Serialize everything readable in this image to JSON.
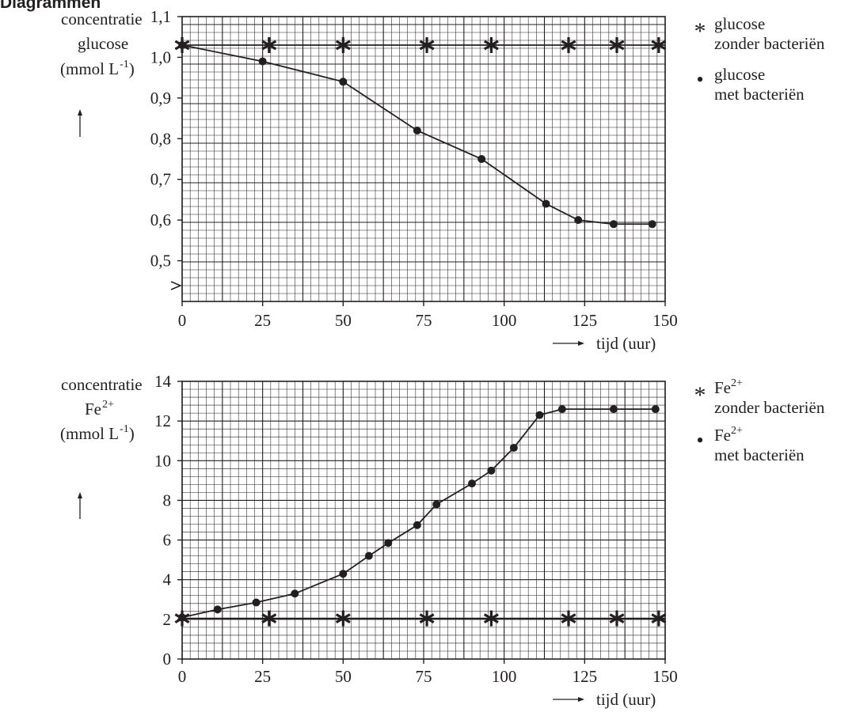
{
  "page": {
    "heading": "Diagrammen"
  },
  "colors": {
    "ink": "#231f20",
    "background": "#ffffff"
  },
  "chart_data": [
    {
      "type": "line",
      "ylabel_lines": [
        "concentratie",
        "glucose",
        "(mmol L",
        "-1",
        ")"
      ],
      "xlabel": "tijd (uur)",
      "y_axis_arrow": "↑",
      "x_axis_arrow": "⟶",
      "x_ticks": [
        "0",
        "25",
        "50",
        "75",
        "100",
        "125",
        "150"
      ],
      "y_ticks": [
        "0,5",
        "0,6",
        "0,7",
        "0,8",
        "0,9",
        "1,0",
        "1,1"
      ],
      "xlim": [
        0,
        150
      ],
      "ylim": [
        0.4,
        1.1
      ],
      "axis_break": true,
      "grid": true,
      "legend_position": "right",
      "series": [
        {
          "name_lines": [
            "glucose",
            "zonder bacteriën"
          ],
          "marker": "asterisk",
          "marker_glyph": "*",
          "x": [
            0,
            27,
            50,
            76,
            96,
            120,
            135,
            148
          ],
          "y": [
            1.03,
            1.03,
            1.03,
            1.03,
            1.03,
            1.03,
            1.03,
            1.03
          ]
        },
        {
          "name_lines": [
            "glucose",
            "met bacteriën"
          ],
          "marker": "dot",
          "marker_glyph": "•",
          "x": [
            0,
            25,
            50,
            73,
            93,
            113,
            123,
            134,
            146
          ],
          "y": [
            1.03,
            0.99,
            0.94,
            0.82,
            0.75,
            0.64,
            0.6,
            0.59,
            0.59
          ]
        }
      ]
    },
    {
      "type": "line",
      "ylabel_lines": [
        "concentratie",
        "Fe",
        "2+",
        "(mmol L",
        "-1",
        ")"
      ],
      "xlabel": "tijd (uur)",
      "y_axis_arrow": "↑",
      "x_axis_arrow": "⟶",
      "x_ticks": [
        "0",
        "25",
        "50",
        "75",
        "100",
        "125",
        "150"
      ],
      "y_ticks": [
        "0",
        "2",
        "4",
        "6",
        "8",
        "10",
        "12",
        "14"
      ],
      "xlim": [
        0,
        150
      ],
      "ylim": [
        0,
        14
      ],
      "grid": true,
      "legend_position": "right",
      "series": [
        {
          "name_lines": [
            "Fe",
            "2+",
            "zonder bacteriën"
          ],
          "marker": "asterisk",
          "marker_glyph": "*",
          "x": [
            0,
            27,
            50,
            76,
            96,
            120,
            135,
            148
          ],
          "y": [
            2.05,
            2.05,
            2.05,
            2.05,
            2.05,
            2.05,
            2.05,
            2.05
          ]
        },
        {
          "name_lines": [
            "Fe",
            "2+",
            "met bacteriën"
          ],
          "marker": "dot",
          "marker_glyph": "•",
          "x": [
            0,
            11,
            23,
            35,
            50,
            58,
            64,
            73,
            79,
            90,
            96,
            103,
            111,
            118,
            134,
            147
          ],
          "y": [
            2.1,
            2.5,
            2.85,
            3.3,
            4.3,
            5.2,
            5.85,
            6.75,
            7.8,
            8.85,
            9.5,
            10.65,
            12.3,
            12.6,
            12.6,
            12.6
          ]
        }
      ]
    }
  ]
}
